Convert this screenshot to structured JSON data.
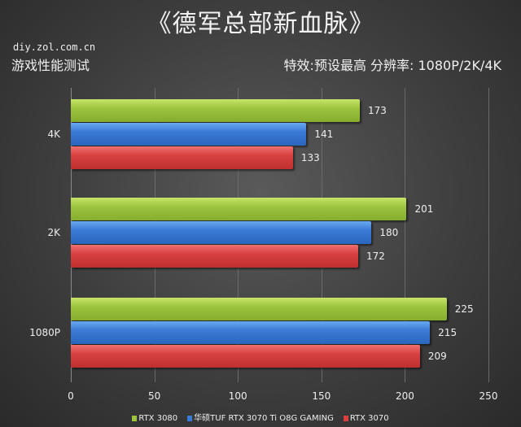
{
  "header": {
    "title": "《德军总部新血脉》",
    "site": "diy.zol.com.cn",
    "subtitle": "游戏性能测试",
    "settings": "特效:预设最高  分辨率: 1080P/2K/4K"
  },
  "chart_data": {
    "type": "bar",
    "orientation": "horizontal",
    "title": "《德军总部新血脉》",
    "categories": [
      "4K",
      "2K",
      "1080P"
    ],
    "series": [
      {
        "name": "RTX 3080",
        "color": "#9cc43e",
        "values": [
          173,
          201,
          225
        ]
      },
      {
        "name": "华硕TUF RTX 3070 Ti O8G GAMING",
        "color": "#3a7ad6",
        "values": [
          141,
          180,
          215
        ]
      },
      {
        "name": "RTX 3070",
        "color": "#d84040",
        "values": [
          133,
          172,
          209
        ]
      }
    ],
    "xlim": [
      0,
      250
    ],
    "xticks": [
      "0",
      "50",
      "100",
      "150",
      "200",
      "250"
    ],
    "grid": true,
    "legend_position": "bottom"
  }
}
